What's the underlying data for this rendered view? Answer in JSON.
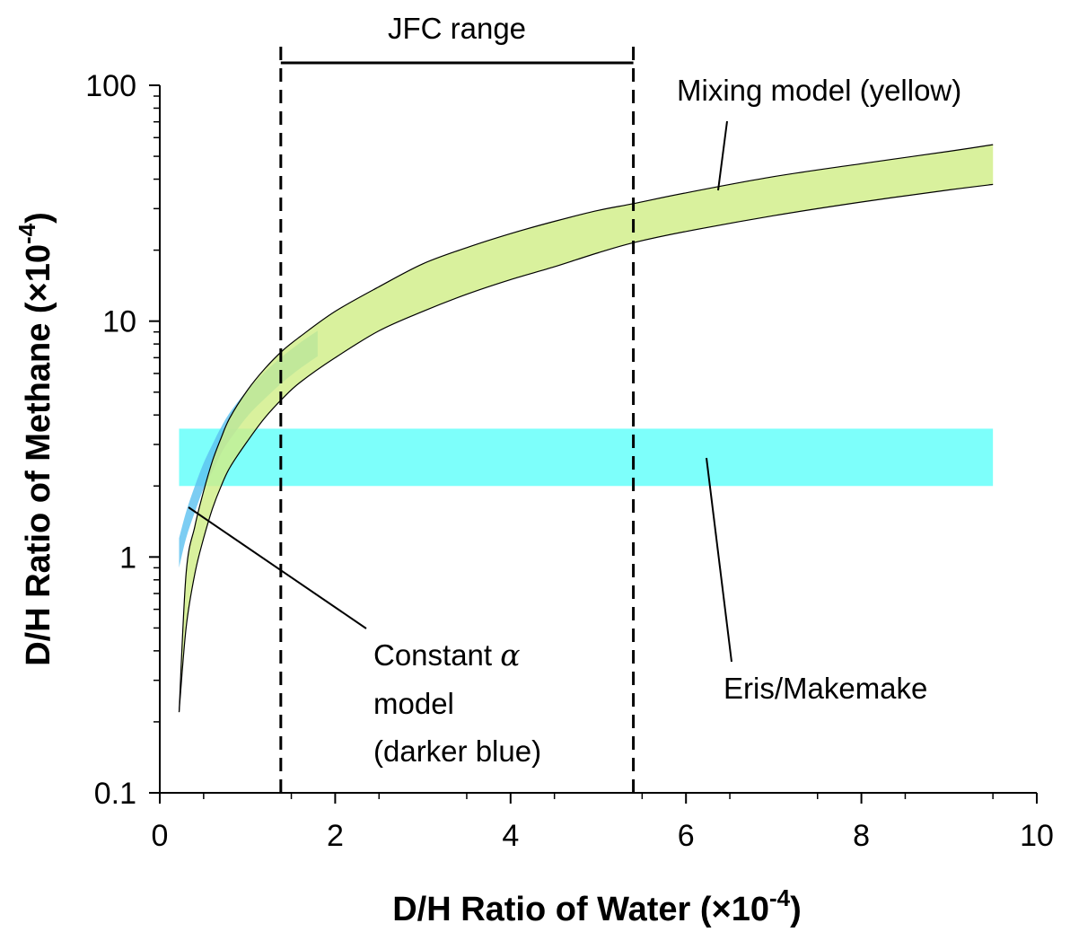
{
  "chart_data": {
    "type": "area",
    "xlabel": "D/H Ratio of Water (×10",
    "xlabel_sup": "-4",
    "xlabel_end": ")",
    "ylabel": "D/H Ratio of Methane (×10",
    "ylabel_sup": "-4",
    "ylabel_end": ")",
    "xlim": [
      0,
      10
    ],
    "ylim": [
      0.1,
      100
    ],
    "yscale": "log",
    "x_ticks": [
      0,
      2,
      4,
      6,
      8,
      10
    ],
    "y_ticks": [
      0.1,
      1,
      10,
      100
    ],
    "x_tick_labels": [
      "0",
      "2",
      "4",
      "6",
      "8",
      "10"
    ],
    "y_tick_labels": [
      "0.1",
      "1",
      "10",
      "100"
    ],
    "series": [
      {
        "name": "Constant α model (darker blue)",
        "color": "#5bc0f0",
        "x": [
          0.22,
          0.3,
          0.4,
          0.5,
          0.6,
          0.7,
          0.8,
          1.0,
          1.2,
          1.4,
          1.6,
          1.8
        ],
        "y_lower": [
          0.9,
          1.2,
          1.55,
          1.95,
          2.3,
          2.75,
          3.15,
          3.95,
          4.7,
          5.5,
          6.3,
          7.1
        ],
        "y_upper": [
          1.2,
          1.55,
          2.0,
          2.5,
          3.0,
          3.55,
          4.1,
          5.1,
          6.1,
          7.1,
          8.1,
          9.1
        ]
      },
      {
        "name": "Mixing model (yellow)",
        "color": "#fff280",
        "x": [
          0.22,
          0.3,
          0.4,
          0.5,
          0.6,
          0.7,
          0.8,
          1.0,
          1.2,
          1.4,
          1.6,
          2.0,
          2.5,
          3.0,
          3.5,
          4.0,
          4.5,
          5.0,
          5.4,
          6.0,
          7.0,
          8.0,
          9.0,
          9.5
        ],
        "y_lower": [
          0.22,
          0.5,
          0.85,
          1.2,
          1.6,
          2.0,
          2.4,
          3.1,
          3.9,
          4.7,
          5.5,
          7.0,
          9.1,
          11.0,
          13.0,
          15.0,
          17.0,
          19.5,
          21.5,
          24.0,
          28.0,
          32.0,
          36.0,
          38.0
        ],
        "y_upper": [
          0.22,
          0.85,
          1.35,
          1.9,
          2.55,
          3.2,
          3.9,
          5.1,
          6.3,
          7.5,
          8.6,
          11.0,
          14.0,
          17.5,
          20.5,
          23.5,
          26.5,
          29.5,
          31.5,
          35.0,
          41.0,
          46.5,
          52.5,
          56.0
        ]
      }
    ],
    "eris_makemake": {
      "label": "Eris/Makemake",
      "x_range": [
        0.22,
        9.5
      ],
      "y_range": [
        2.0,
        3.5
      ],
      "color": "#7dfffb"
    },
    "jfc_range": {
      "label": "JFC range",
      "x_range": [
        1.38,
        5.4
      ]
    },
    "annotations": {
      "mixing_label": "Mixing model (yellow)",
      "constant_line1": "Constant ",
      "constant_alpha": "α",
      "constant_line2": "model",
      "constant_line3": "(darker blue)",
      "eris_label": "Eris/Makemake",
      "jfc_label": "JFC range"
    }
  }
}
